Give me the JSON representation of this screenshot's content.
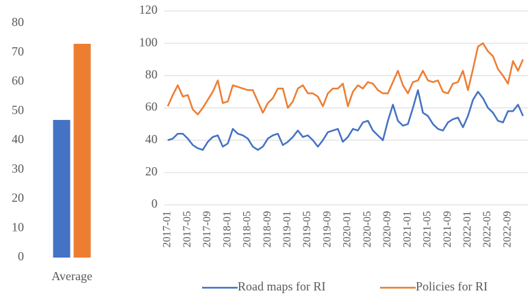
{
  "chart_data": [
    {
      "type": "bar",
      "categories": [
        "Average"
      ],
      "series": [
        {
          "color": "#4472c4",
          "values": [
            47
          ]
        },
        {
          "color": "#ed7d31",
          "values": [
            73
          ]
        }
      ],
      "ylim": [
        0,
        80
      ],
      "yticks": [
        0,
        10,
        20,
        30,
        40,
        50,
        60,
        70,
        80
      ],
      "grid": false
    },
    {
      "type": "line",
      "categories": [
        "2017-01",
        null,
        null,
        null,
        "2017-05",
        null,
        null,
        null,
        "2017-09",
        null,
        null,
        null,
        "2018-01",
        null,
        null,
        null,
        "2018-05",
        null,
        null,
        null,
        "2018-09",
        null,
        null,
        null,
        "2019-01",
        null,
        null,
        null,
        "2019-05",
        null,
        null,
        null,
        "2019-09",
        null,
        null,
        null,
        "2020-01",
        null,
        null,
        null,
        "2020-05",
        null,
        null,
        null,
        "2020-09",
        null,
        null,
        null,
        "2021-01",
        null,
        null,
        null,
        "2021-05",
        null,
        null,
        null,
        "2021-09",
        null,
        null,
        null,
        "2022-01",
        null,
        null,
        null,
        "2022-05",
        null,
        null,
        null,
        "2022-09",
        null,
        null,
        null
      ],
      "series": [
        {
          "name": "Road maps for RI",
          "color": "#4472c4",
          "values": [
            40,
            41,
            44,
            44,
            41,
            37,
            35,
            34,
            39,
            42,
            43,
            36,
            38,
            47,
            44,
            43,
            41,
            36,
            34,
            36,
            41,
            43,
            44,
            37,
            39,
            42,
            46,
            42,
            43,
            40,
            36,
            40,
            45,
            46,
            47,
            39,
            42,
            47,
            46,
            51,
            52,
            46,
            43,
            40,
            52,
            62,
            52,
            49,
            50,
            60,
            71,
            57,
            55,
            50,
            47,
            46,
            51,
            53,
            54,
            48,
            55,
            65,
            70,
            66,
            60,
            57,
            52,
            51,
            58,
            58,
            62,
            55
          ]
        },
        {
          "name": "Policies for RI",
          "color": "#ed7d31",
          "values": [
            61,
            68,
            74,
            67,
            68,
            59,
            56,
            60,
            65,
            70,
            77,
            63,
            64,
            74,
            73,
            72,
            71,
            71,
            64,
            57,
            63,
            66,
            72,
            72,
            60,
            64,
            72,
            74,
            69,
            69,
            67,
            61,
            69,
            72,
            72,
            75,
            61,
            70,
            74,
            72,
            76,
            75,
            71,
            69,
            69,
            76,
            83,
            74,
            69,
            76,
            77,
            83,
            77,
            76,
            77,
            70,
            69,
            75,
            76,
            83,
            71,
            84,
            98,
            100,
            95,
            92,
            84,
            80,
            75,
            89,
            83,
            90
          ]
        }
      ],
      "ylim": [
        0,
        120
      ],
      "yticks": [
        0,
        20,
        40,
        60,
        80,
        100,
        120
      ],
      "grid": true,
      "legend": "bottom"
    }
  ]
}
